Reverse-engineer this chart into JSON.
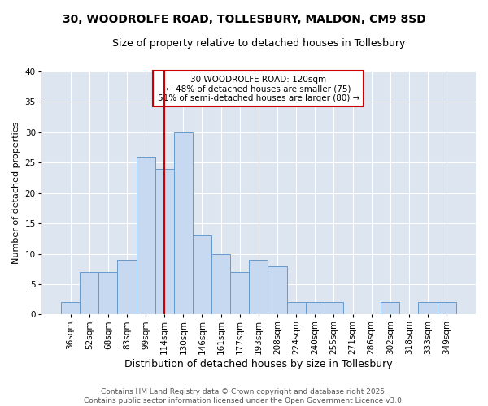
{
  "title": "30, WOODROLFE ROAD, TOLLESBURY, MALDON, CM9 8SD",
  "subtitle": "Size of property relative to detached houses in Tollesbury",
  "xlabel": "Distribution of detached houses by size in Tollesbury",
  "ylabel": "Number of detached properties",
  "categories": [
    "36sqm",
    "52sqm",
    "68sqm",
    "83sqm",
    "99sqm",
    "114sqm",
    "130sqm",
    "146sqm",
    "161sqm",
    "177sqm",
    "193sqm",
    "208sqm",
    "224sqm",
    "240sqm",
    "255sqm",
    "271sqm",
    "286sqm",
    "302sqm",
    "318sqm",
    "333sqm",
    "349sqm"
  ],
  "values": [
    2,
    7,
    7,
    9,
    26,
    24,
    30,
    13,
    10,
    7,
    9,
    8,
    2,
    2,
    2,
    0,
    0,
    2,
    0,
    2,
    2
  ],
  "bar_color": "#c6d9f0",
  "bar_edge_color": "#6699cc",
  "vline_x_index": 5,
  "vline_color": "#cc0000",
  "annotation_lines": [
    "30 WOODROLFE ROAD: 120sqm",
    "← 48% of detached houses are smaller (75)",
    "51% of semi-detached houses are larger (80) →"
  ],
  "annotation_box_color": "#ffffff",
  "annotation_box_edge": "#cc0000",
  "ylim": [
    0,
    40
  ],
  "yticks": [
    0,
    5,
    10,
    15,
    20,
    25,
    30,
    35,
    40
  ],
  "fig_bg_color": "#ffffff",
  "axes_bg_color": "#dde5f0",
  "footer_line1": "Contains HM Land Registry data © Crown copyright and database right 2025.",
  "footer_line2": "Contains public sector information licensed under the Open Government Licence v3.0.",
  "title_fontsize": 10,
  "subtitle_fontsize": 9,
  "xlabel_fontsize": 9,
  "ylabel_fontsize": 8,
  "tick_fontsize": 7.5,
  "annotation_fontsize": 7.5,
  "footer_fontsize": 6.5
}
